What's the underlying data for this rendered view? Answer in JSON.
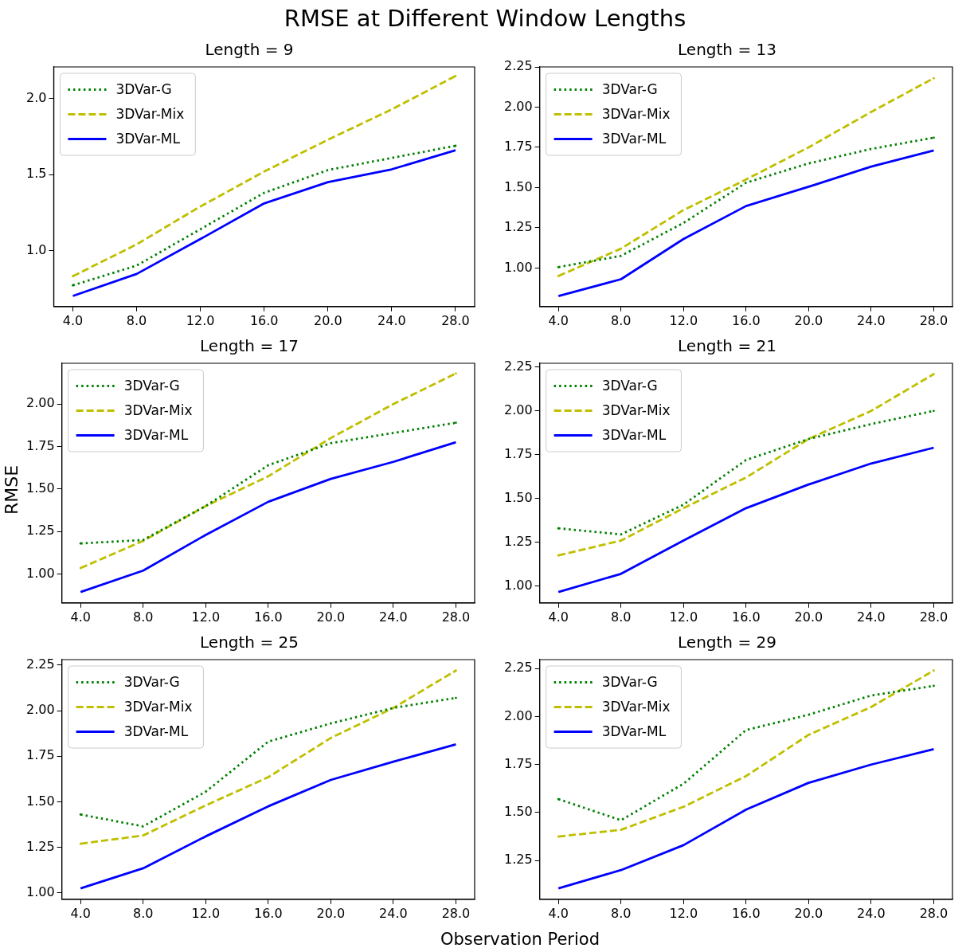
{
  "chart_data": [
    {
      "type": "other",
      "title": "RMSE at Different Window Lengths",
      "xlabel": "Observation Period",
      "ylabel": "RMSE"
    },
    {
      "type": "line",
      "title": "Length = 9",
      "x": [
        4,
        8,
        12,
        16,
        20,
        24,
        28
      ],
      "xlim": [
        2.8,
        29.2
      ],
      "xticks": [
        {
          "value": 4,
          "label": "4.0"
        },
        {
          "value": 8,
          "label": "8.0"
        },
        {
          "value": 12,
          "label": "12.0"
        },
        {
          "value": 16,
          "label": "16.0"
        },
        {
          "value": 20,
          "label": "20.0"
        },
        {
          "value": 24,
          "label": "24.0"
        },
        {
          "value": 28,
          "label": "28.0"
        }
      ],
      "ylim": [
        0.63,
        2.21
      ],
      "yticks": [
        {
          "value": 1,
          "label": "1.0"
        },
        {
          "value": 1.5,
          "label": "1.5"
        },
        {
          "value": 2,
          "label": "2.0"
        }
      ],
      "legend": "top left",
      "grid": false,
      "marker": "none",
      "series": [
        {
          "name": "3DVar-G",
          "color": "#008000",
          "line_style": "dotted",
          "values": [
            0.77,
            0.9,
            1.14,
            1.38,
            1.53,
            1.61,
            1.69
          ]
        },
        {
          "name": "3DVar-Mix",
          "color": "#bfbf00",
          "line_style": "dashed",
          "values": [
            0.83,
            1.04,
            1.29,
            1.52,
            1.73,
            1.93,
            2.15
          ]
        },
        {
          "name": "3DVar-ML",
          "color": "#0000ff",
          "line_style": "solid",
          "values": [
            0.7,
            0.845,
            1.075,
            1.31,
            1.45,
            1.535,
            1.66
          ]
        }
      ]
    },
    {
      "type": "line",
      "title": "Length = 13",
      "x": [
        4,
        8,
        12,
        16,
        20,
        24,
        28
      ],
      "xlim": [
        2.8,
        29.2
      ],
      "xticks": [
        {
          "value": 4,
          "label": "4.0"
        },
        {
          "value": 8,
          "label": "8.0"
        },
        {
          "value": 12,
          "label": "12.0"
        },
        {
          "value": 16,
          "label": "16.0"
        },
        {
          "value": 20,
          "label": "20.0"
        },
        {
          "value": 24,
          "label": "24.0"
        },
        {
          "value": 28,
          "label": "28.0"
        }
      ],
      "ylim": [
        0.76,
        2.25
      ],
      "yticks": [
        {
          "value": 1,
          "label": "1.00"
        },
        1.25,
        {
          "value": 1.5,
          "label": "1.50"
        },
        1.75,
        {
          "value": 2,
          "label": "2.00"
        },
        2.25
      ],
      "legend": "top left",
      "grid": false,
      "marker": "none",
      "series": [
        {
          "name": "3DVar-G",
          "color": "#008000",
          "line_style": "dotted",
          "values": [
            1.005,
            1.075,
            1.28,
            1.53,
            1.65,
            1.74,
            1.81
          ]
        },
        {
          "name": "3DVar-Mix",
          "color": "#bfbf00",
          "line_style": "dashed",
          "values": [
            0.95,
            1.12,
            1.36,
            1.55,
            1.75,
            1.97,
            2.18
          ]
        },
        {
          "name": "3DVar-ML",
          "color": "#0000ff",
          "line_style": "solid",
          "values": [
            0.825,
            0.93,
            1.18,
            1.385,
            1.505,
            1.63,
            1.73
          ]
        }
      ]
    },
    {
      "type": "line",
      "title": "Length = 17",
      "x": [
        4,
        8,
        12,
        16,
        20,
        24,
        28
      ],
      "xlim": [
        2.8,
        29.2
      ],
      "xticks": [
        {
          "value": 4,
          "label": "4.0"
        },
        {
          "value": 8,
          "label": "8.0"
        },
        {
          "value": 12,
          "label": "12.0"
        },
        {
          "value": 16,
          "label": "16.0"
        },
        {
          "value": 20,
          "label": "20.0"
        },
        {
          "value": 24,
          "label": "24.0"
        },
        {
          "value": 28,
          "label": "28.0"
        }
      ],
      "ylim": [
        0.83,
        2.24
      ],
      "yticks": [
        {
          "value": 1,
          "label": "1.00"
        },
        1.25,
        {
          "value": 1.5,
          "label": "1.50"
        },
        1.75,
        {
          "value": 2,
          "label": "2.00"
        }
      ],
      "legend": "top left",
      "grid": false,
      "marker": "none",
      "series": [
        {
          "name": "3DVar-G",
          "color": "#008000",
          "line_style": "dotted",
          "values": [
            1.18,
            1.2,
            1.4,
            1.64,
            1.77,
            1.83,
            1.89
          ]
        },
        {
          "name": "3DVar-Mix",
          "color": "#bfbf00",
          "line_style": "dashed",
          "values": [
            1.035,
            1.195,
            1.4,
            1.575,
            1.8,
            2.0,
            2.18
          ]
        },
        {
          "name": "3DVar-ML",
          "color": "#0000ff",
          "line_style": "solid",
          "values": [
            0.894,
            1.02,
            1.23,
            1.425,
            1.56,
            1.66,
            1.775
          ]
        }
      ]
    },
    {
      "type": "line",
      "title": "Length = 21",
      "x": [
        4,
        8,
        12,
        16,
        20,
        24,
        28
      ],
      "xlim": [
        2.8,
        29.2
      ],
      "xticks": [
        {
          "value": 4,
          "label": "4.0"
        },
        {
          "value": 8,
          "label": "8.0"
        },
        {
          "value": 12,
          "label": "12.0"
        },
        {
          "value": 16,
          "label": "16.0"
        },
        {
          "value": 20,
          "label": "20.0"
        },
        {
          "value": 24,
          "label": "24.0"
        },
        {
          "value": 28,
          "label": "28.0"
        }
      ],
      "ylim": [
        0.904,
        2.272
      ],
      "yticks": [
        {
          "value": 1,
          "label": "1.00"
        },
        1.25,
        {
          "value": 1.5,
          "label": "1.50"
        },
        1.75,
        {
          "value": 2,
          "label": "2.00"
        },
        2.25
      ],
      "legend": "top left",
      "grid": false,
      "marker": "none",
      "series": [
        {
          "name": "3DVar-G",
          "color": "#008000",
          "line_style": "dotted",
          "values": [
            1.33,
            1.295,
            1.465,
            1.72,
            1.84,
            1.925,
            2.0
          ]
        },
        {
          "name": "3DVar-Mix",
          "color": "#bfbf00",
          "line_style": "dashed",
          "values": [
            1.175,
            1.26,
            1.445,
            1.62,
            1.84,
            2.0,
            2.21
          ]
        },
        {
          "name": "3DVar-ML",
          "color": "#0000ff",
          "line_style": "solid",
          "values": [
            0.966,
            1.07,
            1.26,
            1.445,
            1.58,
            1.7,
            1.79
          ]
        }
      ]
    },
    {
      "type": "line",
      "title": "Length = 25",
      "x": [
        4,
        8,
        12,
        16,
        20,
        24,
        28
      ],
      "xlim": [
        2.8,
        29.2
      ],
      "xticks": [
        {
          "value": 4,
          "label": "4.0"
        },
        {
          "value": 8,
          "label": "8.0"
        },
        {
          "value": 12,
          "label": "12.0"
        },
        {
          "value": 16,
          "label": "16.0"
        },
        {
          "value": 20,
          "label": "20.0"
        },
        {
          "value": 24,
          "label": "24.0"
        },
        {
          "value": 28,
          "label": "28.0"
        }
      ],
      "ylim": [
        0.965,
        2.28
      ],
      "yticks": [
        {
          "value": 1,
          "label": "1.00"
        },
        1.25,
        {
          "value": 1.5,
          "label": "1.50"
        },
        1.75,
        {
          "value": 2,
          "label": "2.00"
        },
        2.25
      ],
      "legend": "top left",
      "grid": false,
      "marker": "none",
      "series": [
        {
          "name": "3DVar-G",
          "color": "#008000",
          "line_style": "dotted",
          "values": [
            1.43,
            1.365,
            1.555,
            1.83,
            1.93,
            2.015,
            2.07
          ]
        },
        {
          "name": "3DVar-Mix",
          "color": "#bfbf00",
          "line_style": "dashed",
          "values": [
            1.27,
            1.315,
            1.48,
            1.635,
            1.85,
            2.015,
            2.22
          ]
        },
        {
          "name": "3DVar-ML",
          "color": "#0000ff",
          "line_style": "solid",
          "values": [
            1.025,
            1.135,
            1.31,
            1.475,
            1.62,
            1.72,
            1.815
          ]
        }
      ]
    },
    {
      "type": "line",
      "title": "Length = 29",
      "x": [
        4,
        8,
        12,
        16,
        20,
        24,
        28
      ],
      "xlim": [
        2.8,
        29.2
      ],
      "xticks": [
        {
          "value": 4,
          "label": "4.0"
        },
        {
          "value": 8,
          "label": "8.0"
        },
        {
          "value": 12,
          "label": "12.0"
        },
        {
          "value": 16,
          "label": "16.0"
        },
        {
          "value": 20,
          "label": "20.0"
        },
        {
          "value": 24,
          "label": "24.0"
        },
        {
          "value": 28,
          "label": "28.0"
        }
      ],
      "ylim": [
        1.048,
        2.297
      ],
      "yticks": [
        1.25,
        {
          "value": 1.5,
          "label": "1.50"
        },
        1.75,
        {
          "value": 2,
          "label": "2.00"
        },
        2.25
      ],
      "legend": "top left",
      "grid": false,
      "marker": "none",
      "series": [
        {
          "name": "3DVar-G",
          "color": "#008000",
          "line_style": "dotted",
          "values": [
            1.57,
            1.46,
            1.65,
            1.93,
            2.01,
            2.11,
            2.16
          ]
        },
        {
          "name": "3DVar-Mix",
          "color": "#bfbf00",
          "line_style": "dashed",
          "values": [
            1.375,
            1.41,
            1.53,
            1.69,
            1.905,
            2.05,
            2.24
          ]
        },
        {
          "name": "3DVar-ML",
          "color": "#0000ff",
          "line_style": "solid",
          "values": [
            1.105,
            1.2,
            1.33,
            1.515,
            1.655,
            1.75,
            1.83
          ]
        }
      ]
    }
  ]
}
